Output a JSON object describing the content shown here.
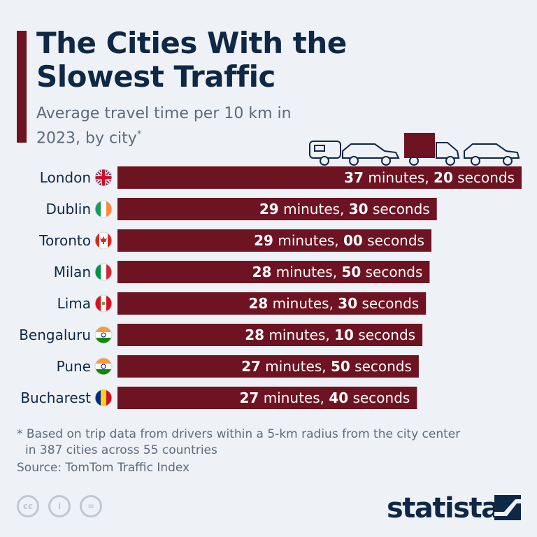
{
  "header": {
    "title": "The Cities With the Slowest Traffic",
    "subtitle": "Average travel time per 10 km in 2023, by city",
    "subtitle_mark": "*"
  },
  "chart_data": {
    "type": "bar",
    "orientation": "horizontal",
    "title": "The Cities With the Slowest Traffic",
    "subtitle": "Average travel time per 10 km in 2023, by city*",
    "categories": [
      "London",
      "Dublin",
      "Toronto",
      "Milan",
      "Lima",
      "Bengaluru",
      "Pune",
      "Bucharest"
    ],
    "flags": [
      "uk",
      "ireland",
      "canada",
      "italy",
      "peru",
      "india",
      "india",
      "romania"
    ],
    "minutes": [
      "37",
      "29",
      "29",
      "28",
      "28",
      "28",
      "27",
      "27"
    ],
    "seconds": [
      "20",
      "30",
      "00",
      "50",
      "30",
      "10",
      "50",
      "40"
    ],
    "values_seconds": [
      2240,
      1770,
      1740,
      1730,
      1710,
      1690,
      1670,
      1660
    ],
    "label_minutes_word": " minutes, ",
    "label_seconds_word": " seconds",
    "bar_color": "#6e1321"
  },
  "footer": {
    "note_line1": "* Based on trip data from drivers within a 5-km radius from the city center",
    "note_line2": "in 387 cities across 55 countries",
    "source": "Source: TomTom Traffic Index",
    "brand": "statista",
    "license_icons": [
      "cc-icon",
      "by-icon",
      "nd-icon"
    ]
  },
  "colors": {
    "title": "#0f2846",
    "accent": "#6e1321",
    "text_muted": "#5d6b7b",
    "background": "#eef1f5"
  }
}
